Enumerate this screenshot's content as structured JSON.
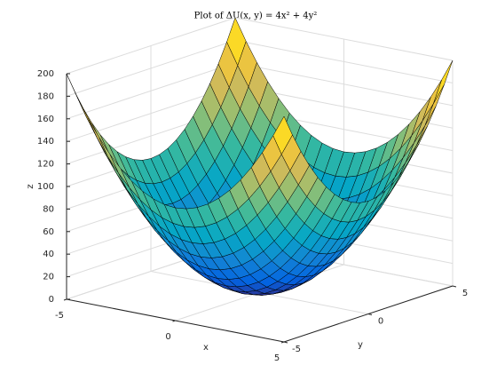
{
  "chart_data": {
    "type": "surface",
    "title": "Plot of ΔU(x, y) = 4x² + 4y²",
    "xlabel": "x",
    "ylabel": "y",
    "zlabel": "z",
    "colormap": "parula",
    "grid": true,
    "edge_color": "#000000",
    "x": [
      -5,
      -4.5,
      -4,
      -3.5,
      -3,
      -2.5,
      -2,
      -1.5,
      -1,
      -0.5,
      0,
      0.5,
      1,
      1.5,
      2,
      2.5,
      3,
      3.5,
      4,
      4.5,
      5
    ],
    "y": [
      -5,
      -4.5,
      -4,
      -3.5,
      -3,
      -2.5,
      -2,
      -1.5,
      -1,
      -0.5,
      0,
      0.5,
      1,
      1.5,
      2,
      2.5,
      3,
      3.5,
      4,
      4.5,
      5
    ],
    "z": [
      [
        200,
        181,
        164,
        149,
        136,
        125,
        116,
        109,
        104,
        101,
        100,
        101,
        104,
        109,
        116,
        125,
        136,
        149,
        164,
        181,
        200
      ],
      [
        181,
        162,
        145,
        130,
        117,
        106,
        97,
        90,
        85,
        82,
        81,
        82,
        85,
        90,
        97,
        106,
        117,
        130,
        145,
        162,
        181
      ],
      [
        164,
        145,
        128,
        113,
        100,
        89,
        80,
        73,
        68,
        65,
        64,
        65,
        68,
        73,
        80,
        89,
        100,
        113,
        128,
        145,
        164
      ],
      [
        149,
        130,
        113,
        98,
        85,
        74,
        65,
        58,
        53,
        50,
        49,
        50,
        53,
        58,
        65,
        74,
        85,
        98,
        113,
        130,
        149
      ],
      [
        136,
        117,
        100,
        85,
        72,
        61,
        52,
        45,
        40,
        37,
        36,
        37,
        40,
        45,
        52,
        61,
        72,
        85,
        100,
        117,
        136
      ],
      [
        125,
        106,
        89,
        74,
        61,
        50,
        41,
        34,
        29,
        26,
        25,
        26,
        29,
        34,
        41,
        50,
        61,
        74,
        89,
        106,
        125
      ],
      [
        116,
        97,
        80,
        65,
        52,
        41,
        32,
        25,
        20,
        17,
        16,
        17,
        20,
        25,
        32,
        41,
        52,
        65,
        80,
        97,
        116
      ],
      [
        109,
        90,
        73,
        58,
        45,
        34,
        25,
        18,
        13,
        10,
        9,
        10,
        13,
        18,
        25,
        34,
        45,
        58,
        73,
        90,
        109
      ],
      [
        104,
        85,
        68,
        53,
        40,
        29,
        20,
        13,
        8,
        5,
        4,
        5,
        8,
        13,
        20,
        29,
        40,
        53,
        68,
        85,
        104
      ],
      [
        101,
        82,
        65,
        50,
        37,
        26,
        17,
        10,
        5,
        2,
        1,
        2,
        5,
        10,
        17,
        26,
        37,
        50,
        65,
        82,
        101
      ],
      [
        100,
        81,
        64,
        49,
        36,
        25,
        16,
        9,
        4,
        1,
        0,
        1,
        4,
        9,
        16,
        25,
        36,
        49,
        64,
        81,
        100
      ],
      [
        101,
        82,
        65,
        50,
        37,
        26,
        17,
        10,
        5,
        2,
        1,
        2,
        5,
        10,
        17,
        26,
        37,
        50,
        65,
        82,
        101
      ],
      [
        104,
        85,
        68,
        53,
        40,
        29,
        20,
        13,
        8,
        5,
        4,
        5,
        8,
        13,
        20,
        29,
        40,
        53,
        68,
        85,
        104
      ],
      [
        109,
        90,
        73,
        58,
        45,
        34,
        25,
        18,
        13,
        10,
        9,
        10,
        13,
        18,
        25,
        34,
        45,
        58,
        73,
        90,
        109
      ],
      [
        116,
        97,
        80,
        65,
        52,
        41,
        32,
        25,
        20,
        17,
        16,
        17,
        20,
        25,
        32,
        41,
        52,
        65,
        80,
        97,
        116
      ],
      [
        125,
        106,
        89,
        74,
        61,
        50,
        41,
        34,
        29,
        26,
        25,
        26,
        29,
        34,
        41,
        50,
        61,
        74,
        89,
        106,
        125
      ],
      [
        136,
        117,
        100,
        85,
        72,
        61,
        52,
        45,
        40,
        37,
        36,
        37,
        40,
        45,
        52,
        61,
        72,
        85,
        100,
        117,
        136
      ],
      [
        149,
        130,
        113,
        98,
        85,
        74,
        65,
        58,
        53,
        50,
        49,
        50,
        53,
        58,
        65,
        74,
        85,
        98,
        113,
        130,
        149
      ],
      [
        164,
        145,
        128,
        113,
        100,
        89,
        80,
        73,
        68,
        65,
        64,
        65,
        68,
        73,
        80,
        89,
        100,
        113,
        128,
        145,
        164
      ],
      [
        181,
        162,
        145,
        130,
        117,
        106,
        97,
        90,
        85,
        82,
        81,
        82,
        85,
        90,
        97,
        106,
        117,
        130,
        145,
        162,
        181
      ],
      [
        200,
        181,
        164,
        149,
        136,
        125,
        116,
        109,
        104,
        101,
        100,
        101,
        104,
        109,
        116,
        125,
        136,
        149,
        164,
        181,
        200
      ]
    ],
    "xlim": [
      -5,
      5
    ],
    "ylim": [
      -5,
      5
    ],
    "zlim": [
      0,
      200
    ],
    "xticks": [
      -5,
      0,
      5
    ],
    "yticks": [
      -5,
      0,
      5
    ],
    "zticks": [
      0,
      20,
      40,
      60,
      80,
      100,
      120,
      140,
      160,
      180,
      200
    ]
  }
}
